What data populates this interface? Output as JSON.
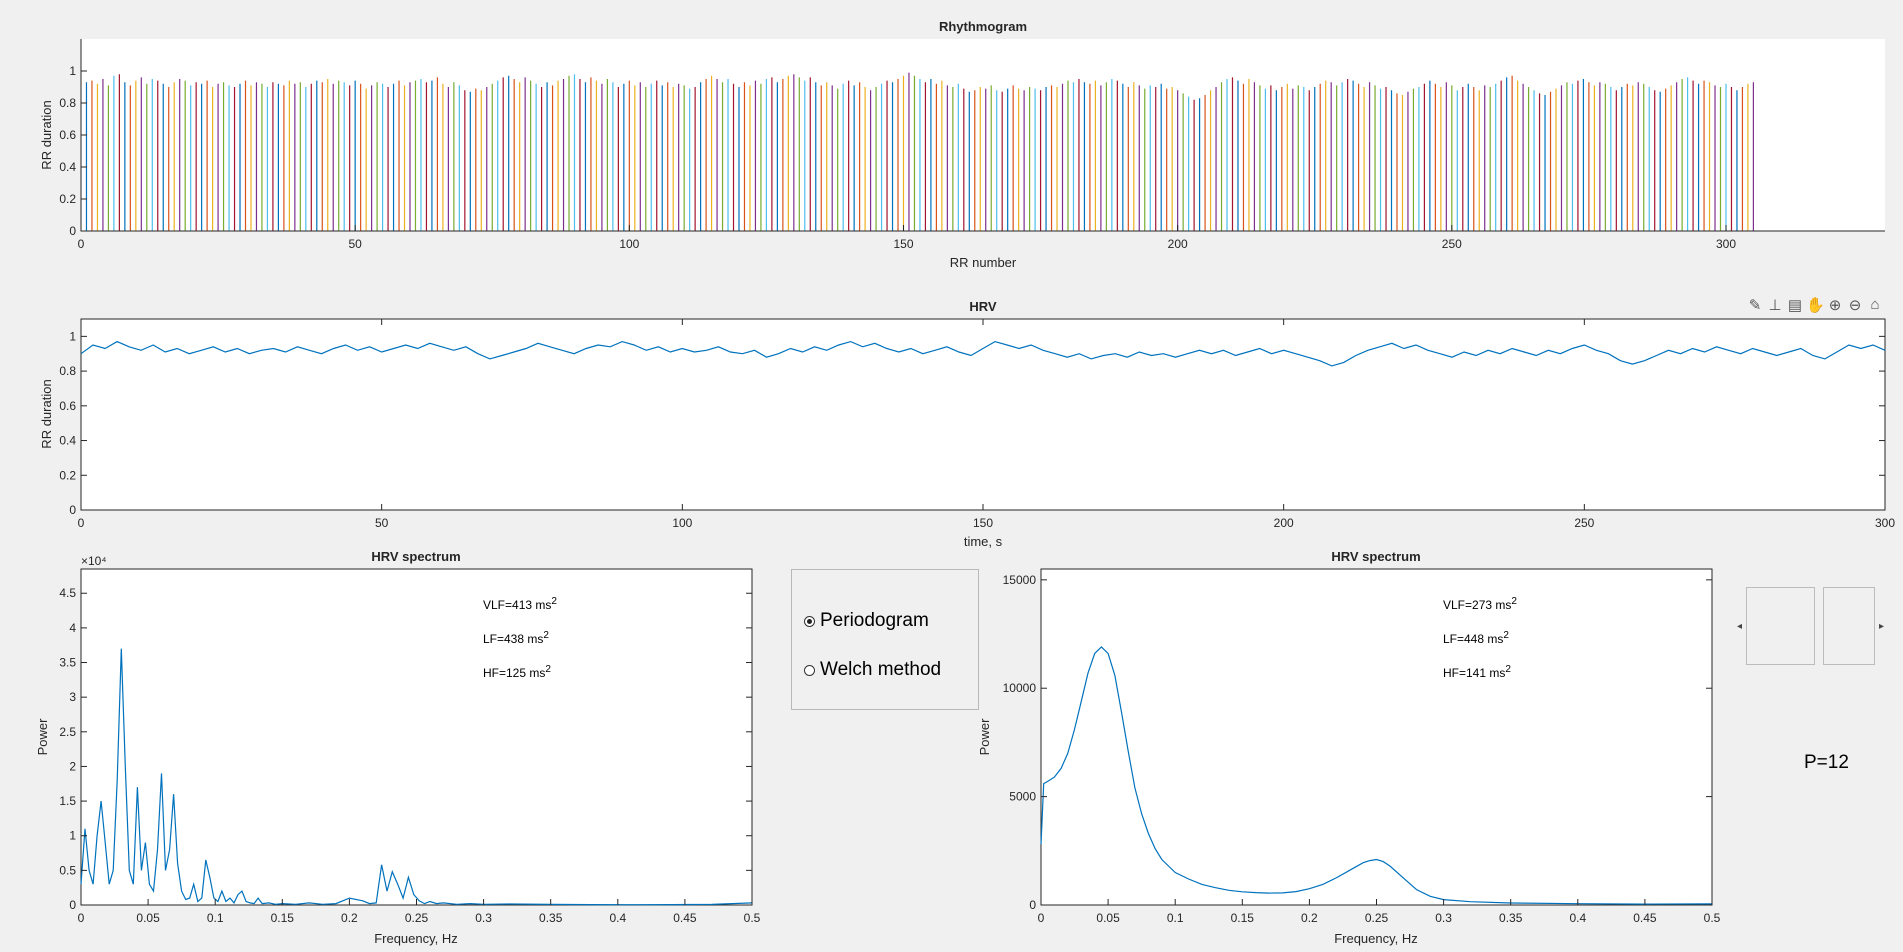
{
  "chart_data": [
    {
      "type": "bar",
      "title": "Rhythmogram",
      "xlabel": "RR number",
      "ylabel": "RR duration",
      "xlim": [
        0,
        329
      ],
      "ylim": [
        0,
        1.2
      ],
      "xticks": [
        0,
        50,
        100,
        150,
        200,
        250,
        300
      ],
      "yticks": [
        0,
        0.2,
        0.4,
        0.6,
        0.8,
        1
      ],
      "grid": false,
      "palette": [
        "#0072BD",
        "#D95319",
        "#EDB120",
        "#7E2F8E",
        "#77AC30",
        "#4DBEEE",
        "#A2142F"
      ],
      "values": [
        0.93,
        0.94,
        0.92,
        0.95,
        0.91,
        0.97,
        0.98,
        0.93,
        0.91,
        0.94,
        0.96,
        0.92,
        0.95,
        0.94,
        0.92,
        0.9,
        0.93,
        0.95,
        0.94,
        0.91,
        0.93,
        0.92,
        0.94,
        0.9,
        0.92,
        0.93,
        0.91,
        0.9,
        0.92,
        0.94,
        0.91,
        0.93,
        0.92,
        0.9,
        0.93,
        0.92,
        0.91,
        0.94,
        0.92,
        0.93,
        0.9,
        0.92,
        0.94,
        0.93,
        0.95,
        0.92,
        0.94,
        0.93,
        0.91,
        0.94,
        0.92,
        0.89,
        0.91,
        0.93,
        0.92,
        0.9,
        0.92,
        0.94,
        0.91,
        0.93,
        0.94,
        0.95,
        0.93,
        0.94,
        0.96,
        0.92,
        0.9,
        0.93,
        0.91,
        0.88,
        0.87,
        0.89,
        0.88,
        0.9,
        0.92,
        0.94,
        0.96,
        0.97,
        0.95,
        0.93,
        0.96,
        0.94,
        0.92,
        0.9,
        0.93,
        0.91,
        0.94,
        0.95,
        0.97,
        0.98,
        0.95,
        0.93,
        0.96,
        0.94,
        0.92,
        0.95,
        0.93,
        0.9,
        0.92,
        0.94,
        0.91,
        0.93,
        0.9,
        0.92,
        0.94,
        0.91,
        0.93,
        0.9,
        0.92,
        0.91,
        0.89,
        0.9,
        0.93,
        0.95,
        0.97,
        0.95,
        0.93,
        0.95,
        0.92,
        0.9,
        0.93,
        0.91,
        0.94,
        0.92,
        0.95,
        0.96,
        0.93,
        0.95,
        0.97,
        0.98,
        0.96,
        0.94,
        0.96,
        0.93,
        0.91,
        0.93,
        0.91,
        0.89,
        0.92,
        0.94,
        0.91,
        0.93,
        0.9,
        0.88,
        0.9,
        0.92,
        0.94,
        0.93,
        0.95,
        0.97,
        0.99,
        0.97,
        0.95,
        0.93,
        0.95,
        0.92,
        0.94,
        0.91,
        0.9,
        0.92,
        0.89,
        0.87,
        0.88,
        0.9,
        0.89,
        0.91,
        0.88,
        0.87,
        0.89,
        0.91,
        0.89,
        0.88,
        0.9,
        0.89,
        0.88,
        0.9,
        0.91,
        0.9,
        0.92,
        0.94,
        0.93,
        0.95,
        0.93,
        0.92,
        0.94,
        0.91,
        0.93,
        0.95,
        0.94,
        0.92,
        0.9,
        0.93,
        0.91,
        0.89,
        0.91,
        0.9,
        0.92,
        0.89,
        0.9,
        0.88,
        0.86,
        0.84,
        0.82,
        0.83,
        0.85,
        0.88,
        0.9,
        0.93,
        0.95,
        0.96,
        0.94,
        0.92,
        0.95,
        0.93,
        0.91,
        0.89,
        0.91,
        0.88,
        0.9,
        0.92,
        0.89,
        0.91,
        0.9,
        0.88,
        0.9,
        0.92,
        0.94,
        0.93,
        0.91,
        0.93,
        0.95,
        0.94,
        0.92,
        0.9,
        0.93,
        0.91,
        0.89,
        0.9,
        0.88,
        0.86,
        0.85,
        0.87,
        0.89,
        0.9,
        0.92,
        0.94,
        0.92,
        0.9,
        0.93,
        0.91,
        0.88,
        0.9,
        0.92,
        0.9,
        0.88,
        0.91,
        0.9,
        0.92,
        0.94,
        0.96,
        0.97,
        0.94,
        0.92,
        0.9,
        0.88,
        0.86,
        0.85,
        0.87,
        0.89,
        0.91,
        0.93,
        0.92,
        0.94,
        0.95,
        0.93,
        0.91,
        0.93,
        0.92,
        0.9,
        0.88,
        0.9,
        0.92,
        0.91,
        0.93,
        0.92,
        0.9,
        0.88,
        0.87,
        0.89,
        0.91,
        0.93,
        0.95,
        0.96,
        0.94,
        0.92,
        0.94,
        0.93,
        0.91,
        0.9,
        0.92,
        0.9,
        0.88,
        0.9,
        0.92,
        0.93
      ]
    },
    {
      "type": "line",
      "title": "HRV",
      "xlabel": "time, s",
      "ylabel": "RR duration",
      "xlim": [
        0,
        300
      ],
      "ylim": [
        0,
        1.1
      ],
      "xticks": [
        0,
        50,
        100,
        150,
        200,
        250,
        300
      ],
      "yticks": [
        0,
        0.2,
        0.4,
        0.6,
        0.8,
        1
      ],
      "grid": false,
      "color": "#0072BD",
      "x": [
        0,
        2,
        4,
        6,
        8,
        10,
        12,
        14,
        16,
        18,
        20,
        22,
        24,
        26,
        28,
        30,
        32,
        34,
        36,
        38,
        40,
        42,
        44,
        46,
        48,
        50,
        52,
        54,
        56,
        58,
        60,
        62,
        64,
        66,
        68,
        70,
        72,
        74,
        76,
        78,
        80,
        82,
        84,
        86,
        88,
        90,
        92,
        94,
        96,
        98,
        100,
        102,
        104,
        106,
        108,
        110,
        112,
        114,
        116,
        118,
        120,
        122,
        124,
        126,
        128,
        130,
        132,
        134,
        136,
        138,
        140,
        142,
        144,
        146,
        148,
        150,
        152,
        154,
        156,
        158,
        160,
        162,
        164,
        166,
        168,
        170,
        172,
        174,
        176,
        178,
        180,
        182,
        184,
        186,
        188,
        190,
        192,
        194,
        196,
        198,
        200,
        202,
        204,
        206,
        208,
        210,
        212,
        214,
        216,
        218,
        220,
        222,
        224,
        226,
        228,
        230,
        232,
        234,
        236,
        238,
        240,
        242,
        244,
        246,
        248,
        250,
        252,
        254,
        256,
        258,
        260,
        262,
        264,
        266,
        268,
        270,
        272,
        274,
        276,
        278,
        280,
        282,
        284,
        286,
        288,
        290,
        292,
        294,
        296,
        298,
        300
      ],
      "y": [
        0.9,
        0.95,
        0.93,
        0.97,
        0.94,
        0.92,
        0.95,
        0.91,
        0.93,
        0.9,
        0.92,
        0.94,
        0.91,
        0.93,
        0.9,
        0.92,
        0.93,
        0.91,
        0.94,
        0.92,
        0.9,
        0.93,
        0.95,
        0.92,
        0.94,
        0.91,
        0.93,
        0.95,
        0.93,
        0.96,
        0.94,
        0.92,
        0.94,
        0.9,
        0.87,
        0.89,
        0.91,
        0.93,
        0.96,
        0.94,
        0.92,
        0.9,
        0.93,
        0.95,
        0.94,
        0.97,
        0.95,
        0.92,
        0.94,
        0.91,
        0.93,
        0.91,
        0.92,
        0.94,
        0.91,
        0.9,
        0.92,
        0.88,
        0.9,
        0.93,
        0.91,
        0.94,
        0.92,
        0.95,
        0.97,
        0.94,
        0.96,
        0.93,
        0.91,
        0.93,
        0.9,
        0.92,
        0.94,
        0.91,
        0.89,
        0.93,
        0.97,
        0.95,
        0.93,
        0.95,
        0.92,
        0.9,
        0.88,
        0.9,
        0.87,
        0.89,
        0.9,
        0.88,
        0.91,
        0.89,
        0.9,
        0.88,
        0.9,
        0.92,
        0.9,
        0.92,
        0.89,
        0.91,
        0.93,
        0.9,
        0.92,
        0.9,
        0.88,
        0.86,
        0.83,
        0.85,
        0.89,
        0.92,
        0.94,
        0.96,
        0.93,
        0.95,
        0.92,
        0.9,
        0.88,
        0.91,
        0.89,
        0.92,
        0.9,
        0.93,
        0.91,
        0.89,
        0.92,
        0.9,
        0.93,
        0.95,
        0.92,
        0.9,
        0.86,
        0.84,
        0.86,
        0.89,
        0.92,
        0.9,
        0.93,
        0.91,
        0.94,
        0.92,
        0.9,
        0.93,
        0.91,
        0.89,
        0.91,
        0.93,
        0.89,
        0.87,
        0.91,
        0.95,
        0.93,
        0.95,
        0.92
      ]
    },
    {
      "type": "line",
      "title": "HRV spectrum",
      "xlabel": "Frequency, Hz",
      "ylabel": "Power",
      "exponent_label": "×10⁴",
      "xlim": [
        0,
        0.5
      ],
      "ylim": [
        0,
        48500
      ],
      "xticks": [
        0,
        0.05,
        0.1,
        0.15,
        0.2,
        0.25,
        0.3,
        0.35,
        0.4,
        0.45,
        0.5
      ],
      "yticks": [
        0,
        0.5,
        1,
        1.5,
        2,
        2.5,
        3,
        3.5,
        4,
        4.5
      ],
      "grid": false,
      "color": "#0072BD",
      "x": [
        0,
        0.003,
        0.006,
        0.009,
        0.012,
        0.015,
        0.018,
        0.021,
        0.024,
        0.027,
        0.03,
        0.033,
        0.036,
        0.039,
        0.042,
        0.045,
        0.048,
        0.051,
        0.054,
        0.057,
        0.06,
        0.063,
        0.066,
        0.069,
        0.072,
        0.075,
        0.078,
        0.081,
        0.084,
        0.087,
        0.09,
        0.093,
        0.096,
        0.099,
        0.102,
        0.105,
        0.108,
        0.111,
        0.114,
        0.117,
        0.12,
        0.123,
        0.126,
        0.129,
        0.132,
        0.135,
        0.14,
        0.145,
        0.15,
        0.16,
        0.17,
        0.18,
        0.19,
        0.2,
        0.21,
        0.215,
        0.22,
        0.224,
        0.228,
        0.232,
        0.236,
        0.24,
        0.244,
        0.248,
        0.252,
        0.256,
        0.26,
        0.265,
        0.27,
        0.28,
        0.29,
        0.3,
        0.32,
        0.35,
        0.38,
        0.41,
        0.44,
        0.47,
        0.5
      ],
      "y": [
        3000,
        11000,
        5000,
        3000,
        10000,
        15000,
        9000,
        3000,
        5000,
        18000,
        37000,
        20000,
        5000,
        3000,
        17000,
        5000,
        9000,
        3000,
        2000,
        8000,
        19000,
        5000,
        8000,
        16000,
        6000,
        2000,
        800,
        1000,
        3000,
        500,
        1000,
        6500,
        4000,
        1000,
        500,
        2000,
        500,
        1000,
        300,
        1500,
        2000,
        500,
        300,
        200,
        1000,
        200,
        300,
        100,
        200,
        100,
        300,
        100,
        200,
        1000,
        600,
        200,
        300,
        5800,
        2000,
        4800,
        3000,
        1000,
        4000,
        1500,
        600,
        200,
        500,
        200,
        300,
        100,
        200,
        100,
        150,
        80,
        60,
        50,
        60,
        80,
        300
      ]
    },
    {
      "type": "line",
      "title": "HRV spectrum",
      "xlabel": "Frequency, Hz",
      "ylabel": "Power",
      "xlim": [
        0,
        0.5
      ],
      "ylim": [
        0,
        15500
      ],
      "xticks": [
        0,
        0.05,
        0.1,
        0.15,
        0.2,
        0.25,
        0.3,
        0.35,
        0.4,
        0.45,
        0.5
      ],
      "yticks": [
        0,
        5000,
        10000,
        15000
      ],
      "grid": false,
      "color": "#0072BD",
      "x": [
        0,
        0.002,
        0.005,
        0.01,
        0.015,
        0.02,
        0.025,
        0.03,
        0.035,
        0.04,
        0.045,
        0.05,
        0.055,
        0.06,
        0.065,
        0.07,
        0.075,
        0.08,
        0.085,
        0.09,
        0.095,
        0.1,
        0.11,
        0.12,
        0.13,
        0.14,
        0.15,
        0.16,
        0.17,
        0.18,
        0.19,
        0.2,
        0.21,
        0.22,
        0.23,
        0.24,
        0.245,
        0.25,
        0.255,
        0.26,
        0.27,
        0.28,
        0.29,
        0.3,
        0.32,
        0.35,
        0.4,
        0.45,
        0.5
      ],
      "y": [
        2800,
        5600,
        5700,
        5900,
        6300,
        7000,
        8100,
        9400,
        10700,
        11600,
        11900,
        11600,
        10600,
        8900,
        7100,
        5400,
        4200,
        3300,
        2600,
        2100,
        1800,
        1500,
        1200,
        950,
        800,
        680,
        610,
        570,
        550,
        560,
        620,
        750,
        950,
        1250,
        1600,
        1950,
        2050,
        2100,
        2000,
        1800,
        1250,
        700,
        400,
        250,
        150,
        90,
        60,
        40,
        50
      ]
    }
  ],
  "spectrum_left": {
    "annotations": [
      {
        "base": "VLF=413 ms",
        "sup": "2"
      },
      {
        "base": "LF=438 ms",
        "sup": "2"
      },
      {
        "base": "HF=125 ms",
        "sup": "2"
      }
    ]
  },
  "spectrum_right": {
    "annotations": [
      {
        "base": "VLF=273 ms",
        "sup": "2"
      },
      {
        "base": "LF=448 ms",
        "sup": "2"
      },
      {
        "base": "HF=141 ms",
        "sup": "2"
      }
    ]
  },
  "method_panel": {
    "options": [
      {
        "label": "Periodogram",
        "selected": true
      },
      {
        "label": "Welch method",
        "selected": false
      }
    ]
  },
  "slider": {
    "left_arrow": "◂",
    "right_arrow": "▸"
  },
  "p_label": "P=12",
  "toolbar": {
    "icons": [
      "brush-icon",
      "datatip-icon",
      "export-icon",
      "pan-hand-icon",
      "zoom-in-icon",
      "zoom-out-icon",
      "home-icon"
    ]
  }
}
